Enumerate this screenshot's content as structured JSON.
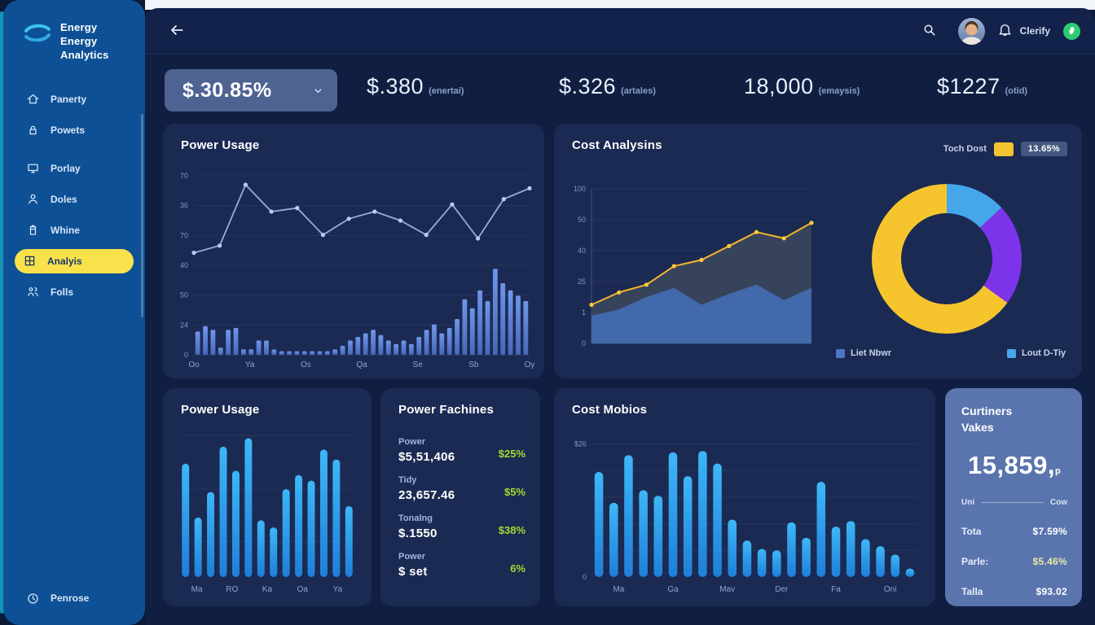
{
  "brand": {
    "line1": "Energy Energy",
    "line2": "Analytics"
  },
  "sidebar": {
    "items": [
      {
        "label": "Panerty",
        "icon": "home",
        "active": false
      },
      {
        "label": "Powets",
        "icon": "lock",
        "active": false
      },
      {
        "label": "Porlay",
        "icon": "monitor",
        "active": false
      },
      {
        "label": "Doles",
        "icon": "user",
        "active": false
      },
      {
        "label": "Whine",
        "icon": "battery",
        "active": false
      },
      {
        "label": "Analyis",
        "icon": "chart",
        "active": true
      },
      {
        "label": "Folls",
        "icon": "users",
        "active": false
      }
    ],
    "footer": {
      "label": "Penrose",
      "icon": "clock"
    }
  },
  "topbar": {
    "user_label": "Clerify"
  },
  "stats": {
    "pill_value": "$.30.85%",
    "items": [
      {
        "value": "$.380",
        "label": "(enertai)"
      },
      {
        "value": "$.326",
        "label": "(artales)"
      },
      {
        "value": "18,000",
        "label": "(emaysis)"
      },
      {
        "value": "$1227",
        "label": "(otid)"
      }
    ]
  },
  "cards": {
    "power_usage_top": {
      "title": "Power Usage"
    },
    "cost_analysis": {
      "title": "Cost Analysins",
      "header_label": "Toch Dost",
      "header_badge": "13.65%",
      "legend_area": "Liet Nbwr",
      "legend_donut": "Lout D-Tiy"
    },
    "power_usage_bottom": {
      "title": "Power Usage"
    },
    "power_machines": {
      "title": "Power Fachines",
      "rows": [
        {
          "label": "Power",
          "value": "$5,51,406",
          "pct": "$25%"
        },
        {
          "label": "Tidy",
          "value": "23,657.46",
          "pct": "$5%"
        },
        {
          "label": "Tonalng",
          "value": "$.1550",
          "pct": "$38%"
        },
        {
          "label": "Power",
          "value": "$ set",
          "pct": "6%"
        }
      ]
    },
    "cost_metrics": {
      "title": "Cost Mobios"
    },
    "customers": {
      "title": "Curtiners",
      "subtitle": "Vakes",
      "big_value": "15,859,",
      "big_suffix": "p",
      "col_left": "Uni",
      "col_right": "Cow",
      "rows": [
        {
          "label": "Tota",
          "value": "$7.59%",
          "highlight": false
        },
        {
          "label": "Parle:",
          "value": "$5.46%",
          "highlight": true
        },
        {
          "label": "Talla",
          "value": "$93.02",
          "highlight": false
        }
      ]
    }
  },
  "colors": {
    "teal_edge": "#1694b5",
    "sidebar_blue": "#0e5095",
    "active_yellow": "#f8e14b",
    "card_bg": "#1b2a52",
    "customers_card_bg": "#5a74ae",
    "positive_green": "#a5d932",
    "status_green": "#2ecc71",
    "donut_yellow": "#f6c52e",
    "donut_purple": "#7c33ea",
    "donut_sky": "#45a7ea"
  },
  "chart_data": {
    "power_usage_top": {
      "type": "combo",
      "title": "Power Usage",
      "ylim": [
        0,
        100
      ],
      "y_ticks": [
        "70",
        "36",
        "70",
        "40",
        "50",
        "24",
        "0"
      ],
      "x_labels": [
        "Oo",
        "Ya",
        "Os",
        "Qa",
        "Se",
        "Sb",
        "Oy"
      ],
      "line": {
        "name": "usage-trend",
        "color": "#93adde",
        "marker_color": "#b9cbf2",
        "values": [
          57,
          61,
          95,
          80,
          82,
          67,
          76,
          80,
          75,
          67,
          84,
          65,
          87,
          93
        ]
      },
      "bars": {
        "name": "consumption",
        "color_top": "#6f96ea",
        "color_bottom": "#4668bd",
        "values": [
          13,
          16,
          14,
          4,
          14,
          15,
          3,
          3,
          8,
          8,
          3,
          2,
          2,
          2,
          2,
          2,
          2,
          2,
          3,
          5,
          8,
          10,
          12,
          14,
          11,
          8,
          6,
          8,
          6,
          10,
          14,
          17,
          12,
          15,
          20,
          31,
          26,
          36,
          30,
          48,
          40,
          36,
          33,
          30
        ]
      }
    },
    "cost_analysis": {
      "type": "area",
      "title": "Cost Analysins",
      "ylim": [
        0,
        100
      ],
      "y_ticks": [
        "100",
        "50",
        "40",
        "25",
        "1",
        "0"
      ],
      "line": {
        "name": "cost-line",
        "color": "#f2b62c",
        "marker_color": "#ffc93c",
        "values": [
          25,
          33,
          38,
          50,
          54,
          63,
          72,
          68,
          78
        ]
      },
      "area_back": {
        "name": "cost-total",
        "color": "#39445b",
        "opacity": 0.95,
        "values": [
          25,
          33,
          38,
          50,
          54,
          63,
          72,
          68,
          78
        ]
      },
      "area_front": {
        "name": "cost-base",
        "color": "#416cb0",
        "opacity": 0.95,
        "values": [
          18,
          22,
          30,
          36,
          25,
          32,
          38,
          28,
          36
        ]
      }
    },
    "cost_donut": {
      "type": "donut",
      "segments": [
        {
          "name": "sky",
          "color": "#45a7ea",
          "value": 13
        },
        {
          "name": "purple",
          "color": "#7c33ea",
          "value": 22
        },
        {
          "name": "yellow",
          "color": "#f6c52e",
          "value": 65
        }
      ]
    },
    "power_usage_bottom": {
      "type": "bar",
      "title": "Power Usage",
      "ylim": [
        0,
        100
      ],
      "grid_values": [
        100,
        62,
        25
      ],
      "x_labels": [
        "Ma",
        "RO",
        "Ka",
        "Oa",
        "Ya"
      ],
      "color_top": "#3db7f7",
      "color_bottom": "#1f7fd9",
      "values": [
        80,
        42,
        60,
        92,
        75,
        98,
        40,
        35,
        62,
        72,
        68,
        90,
        83,
        50
      ]
    },
    "cost_metrics": {
      "type": "bar",
      "title": "Cost Mobios",
      "ylim": [
        0,
        100
      ],
      "grid_values": [
        95,
        76,
        57,
        38,
        19
      ],
      "y_top_label": "$26",
      "y_bottom_label": "0",
      "x_labels": [
        "Ma",
        "Ga",
        "Mav",
        "Der",
        "Fa",
        "Oni"
      ],
      "color_top": "#3db7f7",
      "color_bottom": "#1f7fd9",
      "values": [
        75,
        53,
        87,
        62,
        58,
        89,
        72,
        90,
        81,
        41,
        26,
        20,
        19,
        39,
        28,
        68,
        36,
        40,
        27,
        22,
        16,
        6
      ]
    }
  }
}
